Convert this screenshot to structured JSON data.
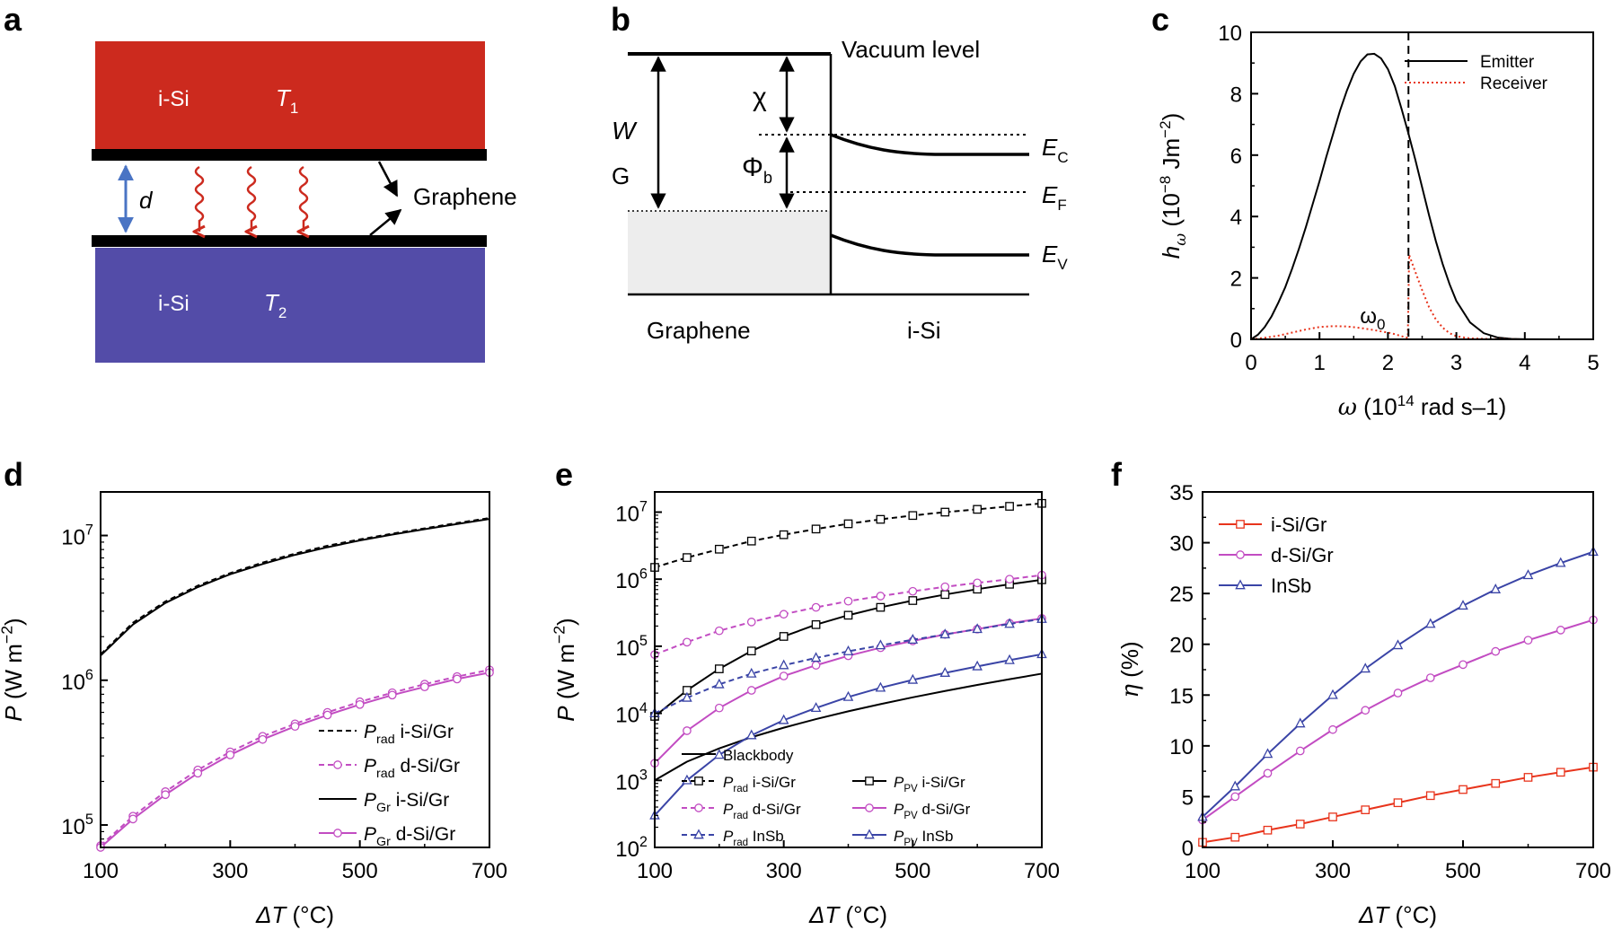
{
  "colors": {
    "red": "#cc2a1e",
    "blue": "#534ca8",
    "magenta": "#c24cc2",
    "navy": "#3a44a6",
    "orange_red": "#e8341c",
    "arrow_blue": "#4a74c4"
  },
  "panel_a": {
    "label": "a",
    "top_material": "i-Si",
    "top_temp": "T",
    "top_temp_sub": "1",
    "bottom_material": "i-Si",
    "bottom_temp": "T",
    "bottom_temp_sub": "2",
    "gap_label": "d",
    "graphene_label": "Graphene"
  },
  "panel_b": {
    "label": "b",
    "vacuum_label": "Vacuum level",
    "W_label": "W",
    "G_label": "G",
    "chi_label": "χ",
    "phi_label": "Φ",
    "phi_sub": "b",
    "Ec_label": "E",
    "Ec_sub": "C",
    "Ef_label": "E",
    "Ef_sub": "F",
    "Ev_label": "E",
    "Ev_sub": "V",
    "left_label": "Graphene",
    "right_label": "i-Si"
  },
  "panel_c": {
    "label": "c",
    "omega0_label": "ω",
    "omega0_sub": "0"
  },
  "panel_d": {
    "label": "d"
  },
  "panel_e": {
    "label": "e"
  },
  "panel_f": {
    "label": "f"
  },
  "chart_data": [
    {
      "id": "c",
      "type": "line",
      "xlabel": "ω (10¹⁴ rad s⁻¹)",
      "ylabel": "hω (10⁻⁸ Jm⁻²)",
      "xlim": [
        0,
        5
      ],
      "ylim": [
        0,
        10
      ],
      "xticks": [
        0,
        1,
        2,
        3,
        4,
        5
      ],
      "yticks": [
        0,
        2,
        4,
        6,
        8,
        10
      ],
      "legend": "top-right",
      "annotation": {
        "label": "ω0",
        "x": 2.3
      },
      "series": [
        {
          "name": "Emitter",
          "style": "solid",
          "color": "#000000",
          "x": [
            0,
            0.1,
            0.2,
            0.3,
            0.4,
            0.5,
            0.6,
            0.7,
            0.8,
            0.9,
            1.0,
            1.1,
            1.2,
            1.3,
            1.4,
            1.5,
            1.6,
            1.7,
            1.8,
            1.9,
            2.0,
            2.1,
            2.2,
            2.3,
            2.4,
            2.5,
            2.6,
            2.7,
            2.8,
            2.9,
            3.0,
            3.2,
            3.4,
            3.6,
            3.8,
            4.0,
            4.5,
            5.0
          ],
          "values": [
            0,
            0.15,
            0.4,
            0.75,
            1.2,
            1.7,
            2.3,
            2.95,
            3.65,
            4.4,
            5.15,
            5.95,
            6.7,
            7.45,
            8.1,
            8.65,
            9.05,
            9.28,
            9.3,
            9.15,
            8.8,
            8.25,
            7.5,
            6.7,
            5.85,
            4.95,
            4.05,
            3.2,
            2.45,
            1.8,
            1.25,
            0.55,
            0.2,
            0.06,
            0.015,
            0.004,
            0,
            0
          ]
        },
        {
          "name": "Receiver",
          "style": "dotted",
          "color": "#e8341c",
          "x": [
            0,
            0.2,
            0.4,
            0.6,
            0.8,
            1.0,
            1.2,
            1.4,
            1.6,
            1.8,
            2.0,
            2.1,
            2.2,
            2.29,
            2.31,
            2.4,
            2.5,
            2.6,
            2.7,
            2.8,
            2.9,
            3.0,
            3.2,
            3.5,
            4.0,
            5.0
          ],
          "values": [
            0,
            0.05,
            0.12,
            0.22,
            0.32,
            0.4,
            0.43,
            0.42,
            0.37,
            0.3,
            0.22,
            0.17,
            0.1,
            0.05,
            2.75,
            2.2,
            1.6,
            1.05,
            0.65,
            0.38,
            0.2,
            0.1,
            0.03,
            0.01,
            0,
            0
          ]
        }
      ]
    },
    {
      "id": "d",
      "type": "line",
      "yscale": "log",
      "xlabel": "ΔT (°C)",
      "ylabel": "P (W m⁻²)",
      "xlim": [
        100,
        700
      ],
      "ylim": [
        70000,
        20000000
      ],
      "xticks": [
        100,
        300,
        500,
        700
      ],
      "yticks": [
        100000,
        1000000,
        10000000
      ],
      "ytick_labels": [
        "10⁵",
        "10⁶",
        "10⁷"
      ],
      "legend": "bottom-right",
      "x": [
        100,
        150,
        200,
        250,
        300,
        350,
        400,
        450,
        500,
        550,
        600,
        650,
        700
      ],
      "series": [
        {
          "name": "Prad i-Si/Gr",
          "style": "dashed",
          "color": "#000000",
          "marker": "none",
          "values": [
            1510000,
            2500000,
            3500000,
            4500000,
            5500000,
            6500000,
            7500000,
            8500000,
            9400000,
            10300000,
            11200000,
            12200000,
            13200000
          ]
        },
        {
          "name": "Prad d-Si/Gr",
          "style": "dashed",
          "color": "#c24cc2",
          "marker": "circle",
          "values": [
            72000,
            115000,
            170000,
            240000,
            320000,
            410000,
            500000,
            600000,
            710000,
            820000,
            940000,
            1060000,
            1180000
          ]
        },
        {
          "name": "PGr i-Si/Gr",
          "style": "solid",
          "color": "#000000",
          "marker": "none",
          "values": [
            1480000,
            2430000,
            3420000,
            4400000,
            5400000,
            6350000,
            7350000,
            8300000,
            9250000,
            10150000,
            11050000,
            12000000,
            13000000
          ]
        },
        {
          "name": "PGr d-Si/Gr",
          "style": "solid",
          "color": "#c24cc2",
          "marker": "circle",
          "values": [
            70000,
            110000,
            162000,
            228000,
            305000,
            390000,
            480000,
            575000,
            680000,
            790000,
            900000,
            1020000,
            1130000
          ]
        }
      ]
    },
    {
      "id": "e",
      "type": "line",
      "yscale": "log",
      "xlabel": "ΔT (°C)",
      "ylabel": "P (W m⁻²)",
      "xlim": [
        100,
        700
      ],
      "ylim": [
        100,
        20000000
      ],
      "xticks": [
        100,
        300,
        500,
        700
      ],
      "yticks": [
        100,
        1000,
        10000,
        100000,
        1000000,
        10000000
      ],
      "ytick_labels": [
        "10²",
        "10³",
        "10⁴",
        "10⁵",
        "10⁶",
        "10⁷"
      ],
      "legend": "bottom-right",
      "x": [
        100,
        150,
        200,
        250,
        300,
        350,
        400,
        450,
        500,
        550,
        600,
        650,
        700
      ],
      "series": [
        {
          "name": "Blackbody",
          "style": "solid",
          "color": "#000000",
          "marker": "none",
          "values": [
            1000,
            1900,
            3000,
            4400,
            6100,
            8200,
            10700,
            13700,
            17300,
            21500,
            26500,
            32200,
            39000
          ]
        },
        {
          "name": "Prad i-Si/Gr",
          "style": "dashed",
          "color": "#000000",
          "marker": "square",
          "values": [
            1500000,
            2100000,
            2800000,
            3700000,
            4600000,
            5600000,
            6700000,
            7800000,
            8900000,
            10000000,
            11000000,
            12200000,
            13500000
          ]
        },
        {
          "name": "PPV i-Si/Gr",
          "style": "solid",
          "color": "#000000",
          "marker": "square",
          "values": [
            9000,
            22000,
            46000,
            85000,
            140000,
            210000,
            290000,
            380000,
            480000,
            590000,
            710000,
            840000,
            980000
          ]
        },
        {
          "name": "Prad d-Si/Gr",
          "style": "dashed",
          "color": "#c24cc2",
          "marker": "circle",
          "values": [
            75000,
            115000,
            170000,
            230000,
            300000,
            380000,
            470000,
            560000,
            660000,
            770000,
            880000,
            1000000,
            1150000
          ]
        },
        {
          "name": "PPV d-Si/Gr",
          "style": "solid",
          "color": "#c24cc2",
          "marker": "circle",
          "values": [
            1800,
            5500,
            12000,
            22000,
            36000,
            52000,
            72000,
            95000,
            120000,
            150000,
            180000,
            220000,
            260000
          ]
        },
        {
          "name": "Prad InSb",
          "style": "dashed",
          "color": "#3a44a6",
          "marker": "triangle",
          "values": [
            10000,
            17000,
            27000,
            39000,
            52000,
            67000,
            84000,
            103000,
            125000,
            150000,
            180000,
            215000,
            255000
          ]
        },
        {
          "name": "PPV InSb",
          "style": "solid",
          "color": "#3a44a6",
          "marker": "triangle",
          "values": [
            300,
            1000,
            2400,
            4700,
            7900,
            12000,
            17500,
            24000,
            31500,
            40000,
            50000,
            62000,
            76000
          ]
        }
      ]
    },
    {
      "id": "f",
      "type": "line",
      "xlabel": "ΔT (°C)",
      "ylabel": "η (%)",
      "xlim": [
        100,
        700
      ],
      "ylim": [
        0,
        35
      ],
      "xticks": [
        100,
        300,
        500,
        700
      ],
      "yticks": [
        0,
        5,
        10,
        15,
        20,
        25,
        30,
        35
      ],
      "legend": "top-left",
      "x": [
        100,
        150,
        200,
        250,
        300,
        350,
        400,
        450,
        500,
        550,
        600,
        650,
        700
      ],
      "series": [
        {
          "name": "i-Si/Gr",
          "style": "solid",
          "color": "#e8341c",
          "marker": "square",
          "values": [
            0.5,
            1.0,
            1.7,
            2.3,
            3.0,
            3.7,
            4.4,
            5.1,
            5.7,
            6.3,
            6.9,
            7.4,
            7.9
          ]
        },
        {
          "name": "d-Si/Gr",
          "style": "solid",
          "color": "#c24cc2",
          "marker": "circle",
          "values": [
            2.7,
            5.0,
            7.3,
            9.5,
            11.6,
            13.5,
            15.2,
            16.7,
            18.0,
            19.3,
            20.4,
            21.4,
            22.4
          ]
        },
        {
          "name": "InSb",
          "style": "solid",
          "color": "#3a44a6",
          "marker": "triangle",
          "values": [
            3.0,
            6.0,
            9.2,
            12.2,
            15.0,
            17.6,
            19.9,
            22.0,
            23.8,
            25.4,
            26.8,
            28.0,
            29.1
          ]
        }
      ]
    }
  ]
}
